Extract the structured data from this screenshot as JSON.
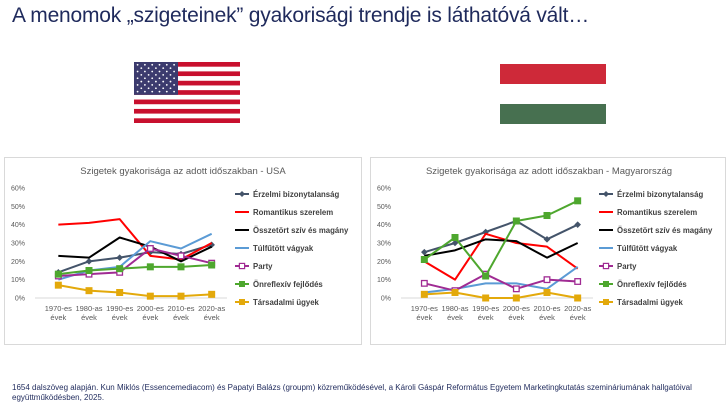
{
  "slide": {
    "title": "A menomok „szigeteinek” gyakorisági trendje is láthatóvá vált…",
    "footnote": "1654 dalszöveg alapján. Kun Miklós (Essencemediacom) és Papatyi Balázs (groupm) közreműködésével, a Károli Gáspár Református Egyetem Marketingkutatás szemináriumának hallgatóival együttműködésben, 2025."
  },
  "flags": {
    "usa": {
      "name": "usa-flag",
      "stripe_red": "#c8102e",
      "stripe_white": "#ffffff",
      "canton_blue": "#3c3b6e"
    },
    "hungary": {
      "name": "hungary-flag",
      "colors": [
        "#ce2939",
        "#ffffff",
        "#477050"
      ]
    }
  },
  "chart_data": [
    {
      "type": "line",
      "title": "Szigetek gyakorisága az adott időszakban - USA",
      "categories": [
        "1970-es évek",
        "1980-as évek",
        "1990-es évek",
        "2000-es évek",
        "2010-es évek",
        "2020-as évek"
      ],
      "ylim": [
        0,
        60
      ],
      "yticks": [
        "0%",
        "10%",
        "20%",
        "30%",
        "40%",
        "50%",
        "60%"
      ],
      "series": [
        {
          "name": "Érzelmi bizonytalanság",
          "color": "#44546a",
          "marker": "diamond",
          "values": [
            14,
            20,
            22,
            25,
            24,
            29
          ]
        },
        {
          "name": "Romantikus szerelem",
          "color": "#ff0000",
          "marker": "none",
          "values": [
            40,
            41,
            43,
            23,
            21,
            30
          ]
        },
        {
          "name": "Összetört szív és magány",
          "color": "#000000",
          "marker": "none",
          "values": [
            23,
            22,
            33,
            28,
            20,
            28
          ]
        },
        {
          "name": "Túlfűtött vágyak",
          "color": "#5b9bd5",
          "marker": "none",
          "values": [
            10,
            15,
            17,
            31,
            27,
            35
          ]
        },
        {
          "name": "Party",
          "color": "#a02b93",
          "marker": "square-open",
          "values": [
            12,
            13,
            14,
            27,
            23,
            19
          ]
        },
        {
          "name": "Önreflexív fejlődés",
          "color": "#4ea72e",
          "marker": "square",
          "values": [
            13,
            15,
            16,
            17,
            17,
            18
          ]
        },
        {
          "name": "Társadalmi ügyek",
          "color": "#e3a90b",
          "marker": "square",
          "values": [
            7,
            4,
            3,
            1,
            1,
            2
          ]
        }
      ],
      "legend": "right",
      "grid": false
    },
    {
      "type": "line",
      "title": "Szigetek gyakorisága az adott időszakban - Magyarország",
      "categories": [
        "1970-es évek",
        "1980-as évek",
        "1990-es évek",
        "2000-es évek",
        "2010-es évek",
        "2020-as évek"
      ],
      "ylim": [
        0,
        60
      ],
      "yticks": [
        "0%",
        "10%",
        "20%",
        "30%",
        "40%",
        "50%",
        "60%"
      ],
      "series": [
        {
          "name": "Érzelmi bizonytalanság",
          "color": "#44546a",
          "marker": "diamond",
          "values": [
            25,
            30,
            36,
            42,
            32,
            40
          ]
        },
        {
          "name": "Romantikus szerelem",
          "color": "#ff0000",
          "marker": "none",
          "values": [
            20,
            10,
            35,
            30,
            28,
            16
          ]
        },
        {
          "name": "Összetört szív és magány",
          "color": "#000000",
          "marker": "none",
          "values": [
            23,
            26,
            32,
            31,
            22,
            30
          ]
        },
        {
          "name": "Túlfűtött vágyak",
          "color": "#5b9bd5",
          "marker": "none",
          "values": [
            3,
            5,
            8,
            8,
            5,
            17
          ]
        },
        {
          "name": "Party",
          "color": "#a02b93",
          "marker": "square-open",
          "values": [
            8,
            4,
            13,
            5,
            10,
            9
          ]
        },
        {
          "name": "Önreflexív fejlődés",
          "color": "#4ea72e",
          "marker": "square",
          "values": [
            21,
            33,
            12,
            42,
            45,
            53
          ]
        },
        {
          "name": "Társadalmi ügyek",
          "color": "#e3a90b",
          "marker": "square",
          "values": [
            2,
            3,
            0,
            0,
            3,
            0
          ]
        }
      ],
      "legend": "right",
      "grid": false
    }
  ]
}
